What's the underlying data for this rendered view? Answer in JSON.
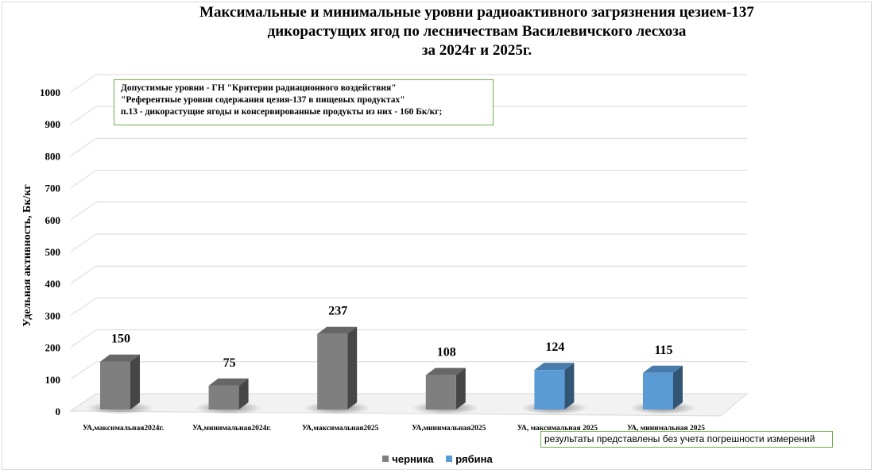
{
  "chart_data": {
    "type": "bar",
    "title_lines": [
      "Максимальные и минимальные уровни радиоактивного загрязнения цезием-137",
      "дикорастущих ягод по лесничествам Василевичского лесхоза",
      "за 2024г и 2025г."
    ],
    "ylabel": "Удельная активность, Бк/кг",
    "xlabel": "",
    "ylim": [
      0,
      1000
    ],
    "yticks": [
      0,
      100,
      200,
      300,
      400,
      500,
      600,
      700,
      800,
      900,
      1000
    ],
    "categories": [
      "УА,максимальная2024г.",
      "УА,минимальная2024г.",
      "УА,максимальная2025",
      "УА,минимальная2025",
      "УА, максимальная 2025",
      "УА, минимальная 2025"
    ],
    "values": [
      150,
      75,
      237,
      108,
      124,
      115
    ],
    "bar_series": [
      "черника",
      "черника",
      "черника",
      "черника",
      "рябина",
      "рябина"
    ],
    "series": [
      {
        "name": "черника",
        "color": "#7f7f7f"
      },
      {
        "name": "рябина",
        "color": "#5b9bd5"
      }
    ],
    "legend_position": "bottom",
    "grid": true,
    "annotation_lines": [
      "Допустимые уровни - ГН \"Критерии радиационного воздействия\"",
      "\"Референтные уровни содержания цезия-137 в пищевых продуктах\"",
      "п.13 - дикорастущие ягоды и консервированные продукты из них - 160 Бк/кг;"
    ],
    "footnote": "результаты представлены без учета погрешности измерений"
  }
}
